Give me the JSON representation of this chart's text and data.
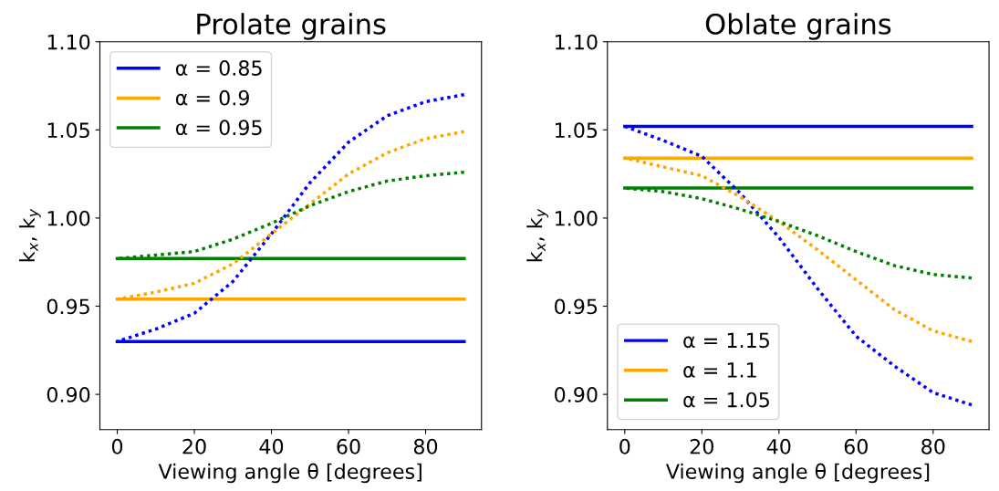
{
  "chart_data": [
    {
      "type": "line",
      "title": "Prolate grains",
      "xlabel": "Viewing angle θ [degrees]",
      "ylabel": "k$_{x}$, k$_{y}$",
      "xlim": [
        -4.5,
        94.5
      ],
      "ylim": [
        0.88,
        1.1
      ],
      "xticks": [
        0,
        20,
        40,
        60,
        80
      ],
      "yticks": [
        {
          "value": 0.9,
          "label": "0.90"
        },
        {
          "value": 0.95,
          "label": "0.95"
        },
        {
          "value": 1.0,
          "label": "1.00"
        },
        {
          "value": 1.05,
          "label": "1.05"
        },
        {
          "value": 1.1,
          "label": "1.10"
        }
      ],
      "legend": "top left",
      "grid": false,
      "series": [
        {
          "name": "α = 0.85",
          "color": "#0000ff",
          "line_style": "solid",
          "x": [
            0,
            90
          ],
          "values": [
            0.93,
            0.93
          ]
        },
        {
          "name": "α = 0.9",
          "color": "#ffa500",
          "line_style": "solid",
          "x": [
            0,
            90
          ],
          "values": [
            0.954,
            0.954
          ]
        },
        {
          "name": "α = 0.95",
          "color": "#008000",
          "line_style": "solid",
          "x": [
            0,
            90
          ],
          "values": [
            0.977,
            0.977
          ]
        },
        {
          "color": "#0000ff",
          "line_style": "dotted",
          "x": [
            0,
            10,
            20,
            30,
            40,
            50,
            60,
            70,
            80,
            90
          ],
          "values": [
            0.93,
            0.937,
            0.946,
            0.964,
            0.991,
            1.02,
            1.043,
            1.058,
            1.066,
            1.07
          ]
        },
        {
          "color": "#ffa500",
          "line_style": "dotted",
          "x": [
            0,
            10,
            20,
            30,
            40,
            50,
            60,
            70,
            80,
            90
          ],
          "values": [
            0.954,
            0.958,
            0.963,
            0.974,
            0.991,
            1.008,
            1.025,
            1.037,
            1.045,
            1.049
          ]
        },
        {
          "color": "#008000",
          "line_style": "dotted",
          "x": [
            0,
            10,
            20,
            30,
            40,
            50,
            60,
            70,
            80,
            90
          ],
          "values": [
            0.977,
            0.979,
            0.981,
            0.988,
            0.997,
            1.007,
            1.015,
            1.021,
            1.024,
            1.026
          ]
        }
      ]
    },
    {
      "type": "line",
      "title": "Oblate grains",
      "xlabel": "Viewing angle θ [degrees]",
      "ylabel": "k$_{x}$, k$_{y}$",
      "xlim": [
        -4.5,
        94.5
      ],
      "ylim": [
        0.88,
        1.1
      ],
      "xticks": [
        0,
        20,
        40,
        60,
        80
      ],
      "yticks": [
        {
          "value": 0.9,
          "label": "0.90"
        },
        {
          "value": 0.95,
          "label": "0.95"
        },
        {
          "value": 1.0,
          "label": "1.00"
        },
        {
          "value": 1.05,
          "label": "1.05"
        },
        {
          "value": 1.1,
          "label": "1.10"
        }
      ],
      "legend": "bottom left",
      "grid": false,
      "series": [
        {
          "name": "α = 1.15",
          "color": "#0000ff",
          "line_style": "solid",
          "x": [
            0,
            90
          ],
          "values": [
            1.052,
            1.052
          ]
        },
        {
          "name": "α = 1.1",
          "color": "#ffa500",
          "line_style": "solid",
          "x": [
            0,
            90
          ],
          "values": [
            1.034,
            1.034
          ]
        },
        {
          "name": "α = 1.05",
          "color": "#008000",
          "line_style": "solid",
          "x": [
            0,
            90
          ],
          "values": [
            1.017,
            1.017
          ]
        },
        {
          "color": "#0000ff",
          "line_style": "dotted",
          "x": [
            0,
            10,
            20,
            30,
            40,
            50,
            60,
            70,
            80,
            90
          ],
          "values": [
            1.052,
            1.044,
            1.035,
            1.014,
            0.989,
            0.96,
            0.933,
            0.916,
            0.901,
            0.894
          ]
        },
        {
          "color": "#ffa500",
          "line_style": "dotted",
          "x": [
            0,
            10,
            20,
            30,
            40,
            50,
            60,
            70,
            80,
            90
          ],
          "values": [
            1.034,
            1.029,
            1.024,
            1.012,
            0.998,
            0.982,
            0.965,
            0.948,
            0.936,
            0.93
          ]
        },
        {
          "color": "#008000",
          "line_style": "dotted",
          "x": [
            0,
            10,
            20,
            30,
            40,
            50,
            60,
            70,
            80,
            90
          ],
          "values": [
            1.017,
            1.015,
            1.011,
            1.005,
            0.998,
            0.99,
            0.981,
            0.973,
            0.968,
            0.966
          ]
        }
      ]
    }
  ]
}
